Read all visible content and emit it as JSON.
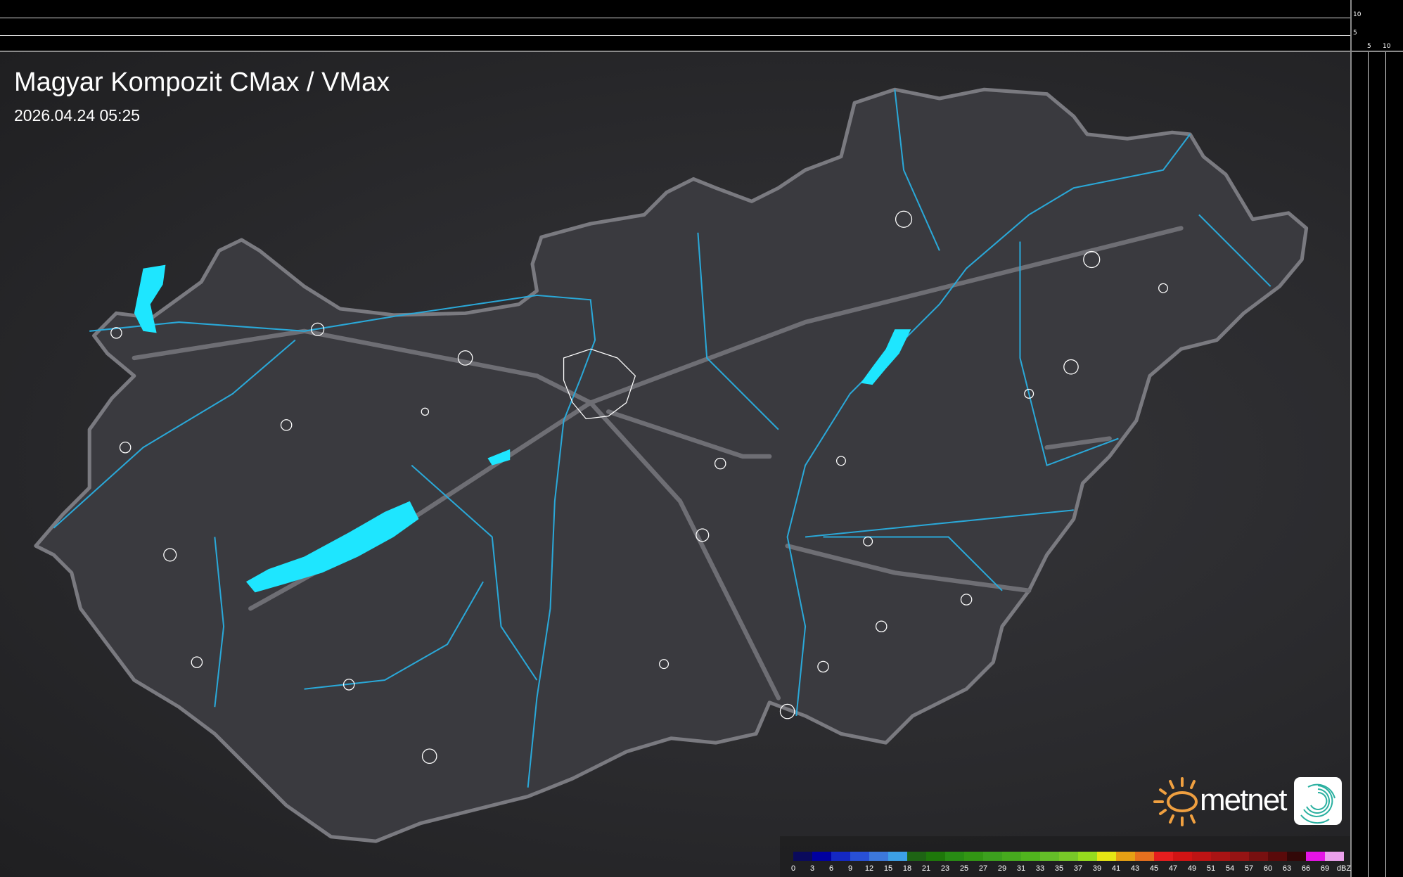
{
  "header": {
    "title": "Magyar Kompozit CMax / VMax",
    "datetime": "2026.04.24 05:25"
  },
  "scale": {
    "vertical_labels": [
      "10",
      "5"
    ],
    "horizontal_labels": [
      "5",
      "10"
    ]
  },
  "legend": {
    "unit": "dBZ",
    "labels": [
      "0",
      "3",
      "6",
      "9",
      "12",
      "15",
      "18",
      "21",
      "23",
      "25",
      "27",
      "29",
      "31",
      "33",
      "35",
      "37",
      "39",
      "41",
      "43",
      "45",
      "47",
      "49",
      "51",
      "54",
      "57",
      "60",
      "63",
      "66",
      "69"
    ],
    "colors": [
      "#0a0a5c",
      "#0000a0",
      "#1428c4",
      "#2850d6",
      "#3c78dc",
      "#3ca0e6",
      "#1e6414",
      "#1e780a",
      "#288c14",
      "#329614",
      "#3ca01e",
      "#46aa1e",
      "#50b41e",
      "#64be28",
      "#78c828",
      "#96dc1e",
      "#e6e614",
      "#e6a014",
      "#e6701e",
      "#e61e1e",
      "#d21414",
      "#be1414",
      "#aa1414",
      "#961414",
      "#781010",
      "#5a0a0a",
      "#320808",
      "#e614e6",
      "#eba0eb",
      "#8ce6e6"
    ]
  },
  "logo": {
    "text": "metnet",
    "sun_color": "#f0a040",
    "swirl_color": "#2ab0a0"
  },
  "map": {
    "border_color": "#8a8a8e",
    "water_color": "#1ee6ff",
    "river_color": "#2aa8d8",
    "city_outline_color": "#ffffff"
  }
}
